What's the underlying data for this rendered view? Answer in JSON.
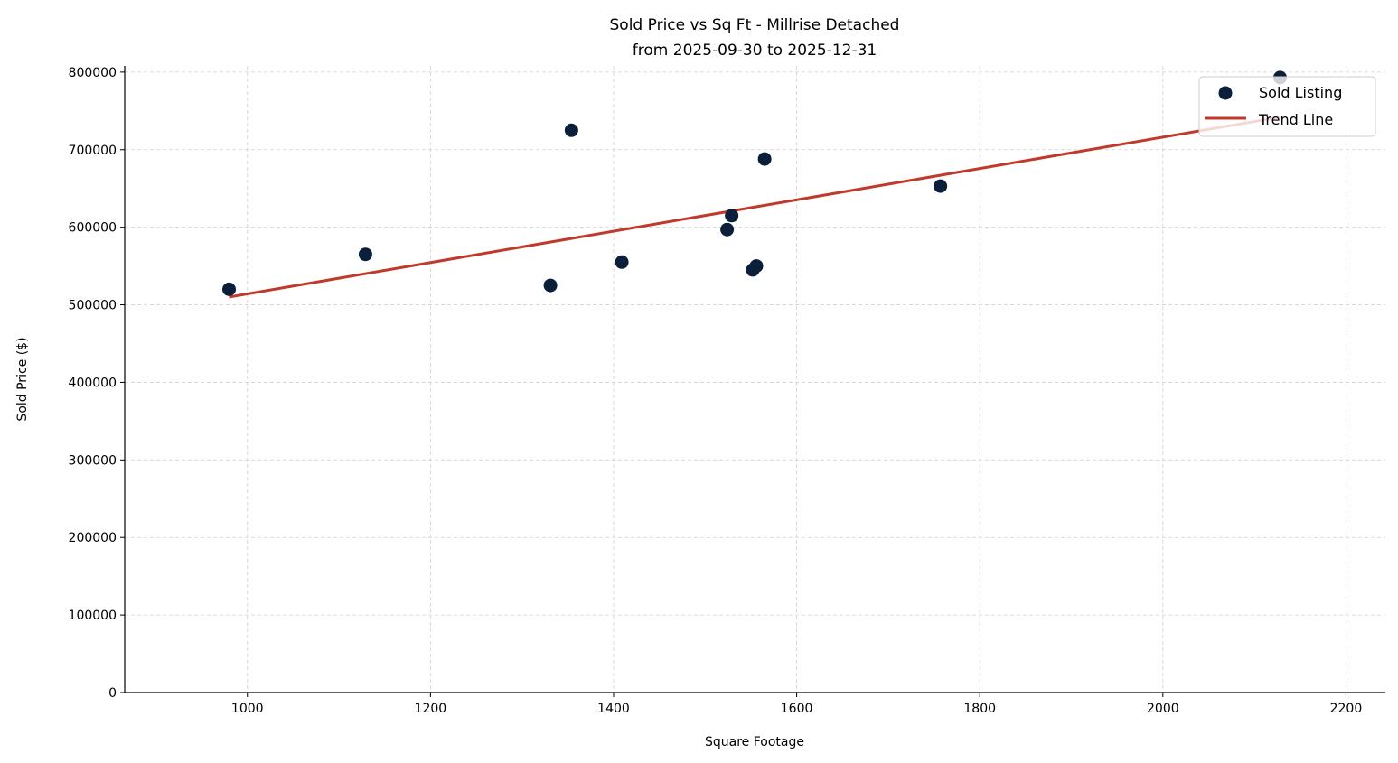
{
  "chart_data": {
    "type": "scatter",
    "title": "Sold Price vs Sq Ft - Millrise Detached",
    "subtitle": "from 2025-09-30 to 2025-12-31",
    "xlabel": "Square Footage",
    "ylabel": "Sold Price ($)",
    "xlim": [
      866,
      2243
    ],
    "ylim": [
      0,
      808000
    ],
    "xticks": [
      1000,
      1200,
      1400,
      1600,
      1800,
      2000,
      2200
    ],
    "yticks": [
      0,
      100000,
      200000,
      300000,
      400000,
      500000,
      600000,
      700000,
      800000
    ],
    "grid": true,
    "legend_position": "top-right",
    "series": [
      {
        "name": "Sold Listing",
        "type": "scatter",
        "color": "#0b1f3a",
        "points": [
          {
            "x": 980,
            "y": 520000
          },
          {
            "x": 1129,
            "y": 565000
          },
          {
            "x": 1331,
            "y": 525000
          },
          {
            "x": 1354,
            "y": 725000
          },
          {
            "x": 1409,
            "y": 555000
          },
          {
            "x": 1524,
            "y": 597000
          },
          {
            "x": 1529,
            "y": 615000
          },
          {
            "x": 1552,
            "y": 545000
          },
          {
            "x": 1556,
            "y": 550000
          },
          {
            "x": 1565,
            "y": 688000
          },
          {
            "x": 1757,
            "y": 653000
          },
          {
            "x": 2128,
            "y": 793000
          }
        ]
      },
      {
        "name": "Trend Line",
        "type": "line",
        "color": "#c0392b",
        "points": [
          {
            "x": 980,
            "y": 510000
          },
          {
            "x": 2128,
            "y": 742000
          }
        ]
      }
    ]
  }
}
